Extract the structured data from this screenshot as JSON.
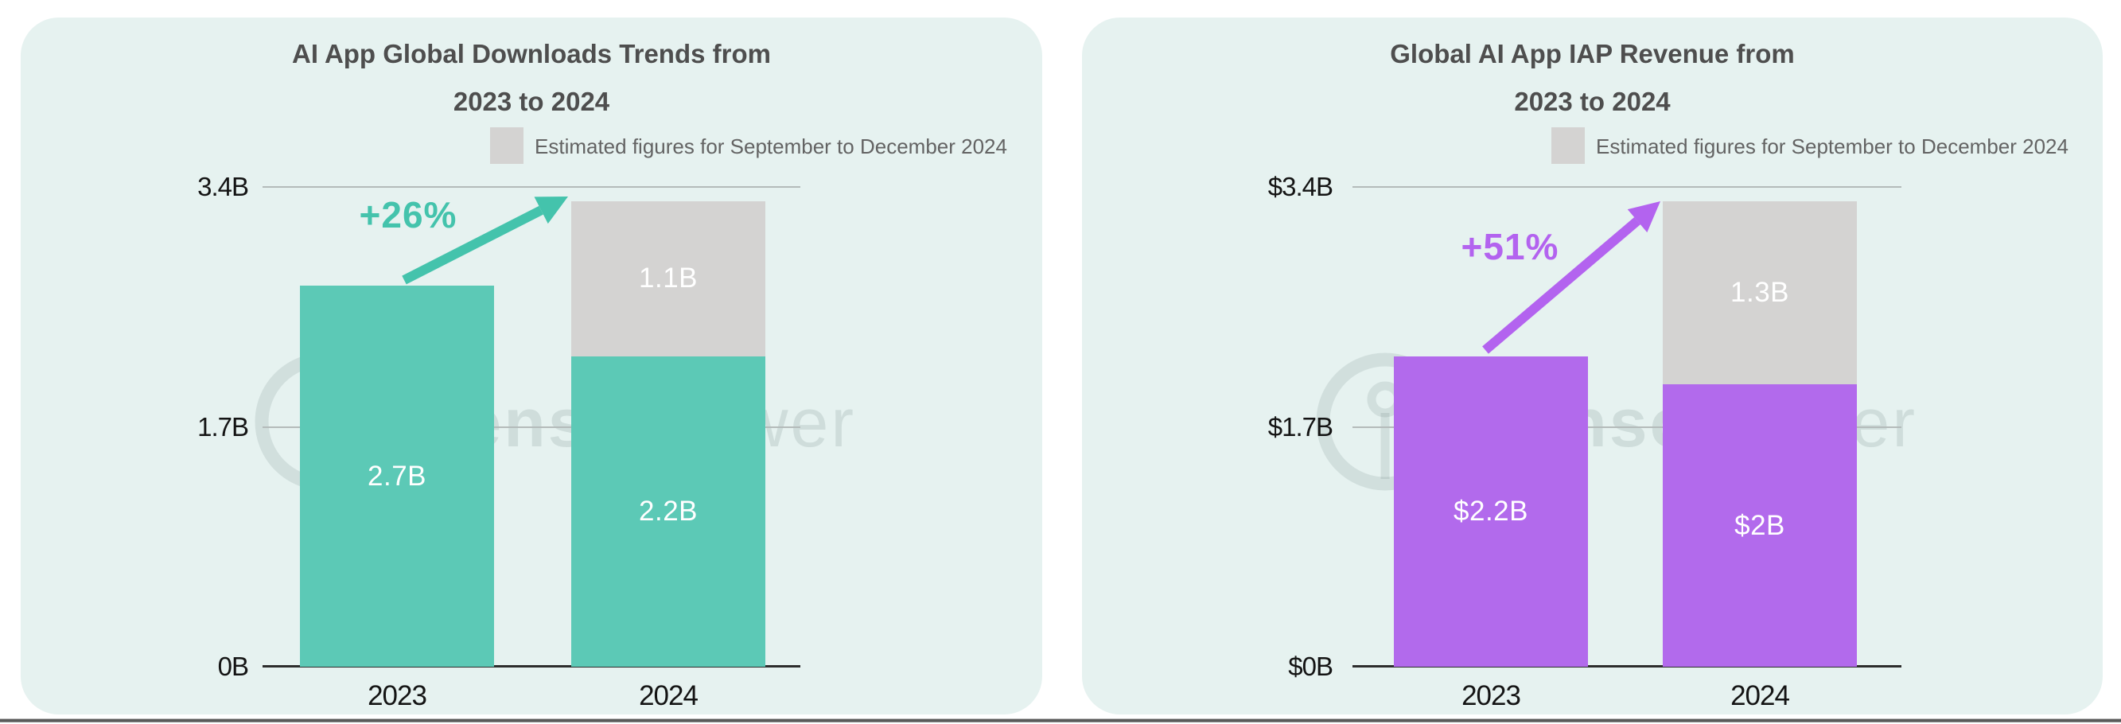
{
  "page": {
    "background": "#ffffff",
    "card_background": "#e6f2f0"
  },
  "watermark": {
    "part1": "Sensor",
    "part2": "Tower"
  },
  "chart_data": [
    {
      "type": "bar",
      "stacked": true,
      "title_line1": "AI App Global Downloads Trends from",
      "title_line2": "2023 to 2024",
      "legend": "Estimated figures for September to December 2024",
      "ylim": [
        0,
        3.4
      ],
      "yticks": [
        {
          "label": "3.4B",
          "value": 3.4
        },
        {
          "label": "1.7B",
          "value": 1.7
        },
        {
          "label": "0B",
          "value": 0
        }
      ],
      "categories": [
        "2023",
        "2024"
      ],
      "bars": [
        {
          "category": "2023",
          "segments": [
            {
              "series": "actual",
              "value": 2.7,
              "label": "2.7B"
            }
          ]
        },
        {
          "category": "2024",
          "segments": [
            {
              "series": "actual",
              "value": 2.2,
              "label": "2.2B"
            },
            {
              "series": "estimated",
              "value": 1.1,
              "label": "1.1B"
            }
          ]
        }
      ],
      "growth": {
        "label": "+26%"
      },
      "colors": {
        "actual": "#5cc9b6",
        "estimated": "#d4d3d2",
        "accent": "#44c3ac"
      }
    },
    {
      "type": "bar",
      "stacked": true,
      "title_line1": "Global AI App IAP Revenue from",
      "title_line2": "2023 to 2024",
      "legend": "Estimated figures for September to December 2024",
      "ylim": [
        0,
        3.4
      ],
      "yticks": [
        {
          "label": "$3.4B",
          "value": 3.4
        },
        {
          "label": "$1.7B",
          "value": 1.7
        },
        {
          "label": "$0B",
          "value": 0
        }
      ],
      "categories": [
        "2023",
        "2024"
      ],
      "bars": [
        {
          "category": "2023",
          "segments": [
            {
              "series": "actual",
              "value": 2.2,
              "label": "$2.2B"
            }
          ]
        },
        {
          "category": "2024",
          "segments": [
            {
              "series": "actual",
              "value": 2.0,
              "label": "$2B"
            },
            {
              "series": "estimated",
              "value": 1.3,
              "label": "1.3B"
            }
          ]
        }
      ],
      "growth": {
        "label": "+51%"
      },
      "colors": {
        "actual": "#b26aec",
        "estimated": "#d4d3d2",
        "accent": "#b363ef"
      }
    }
  ]
}
